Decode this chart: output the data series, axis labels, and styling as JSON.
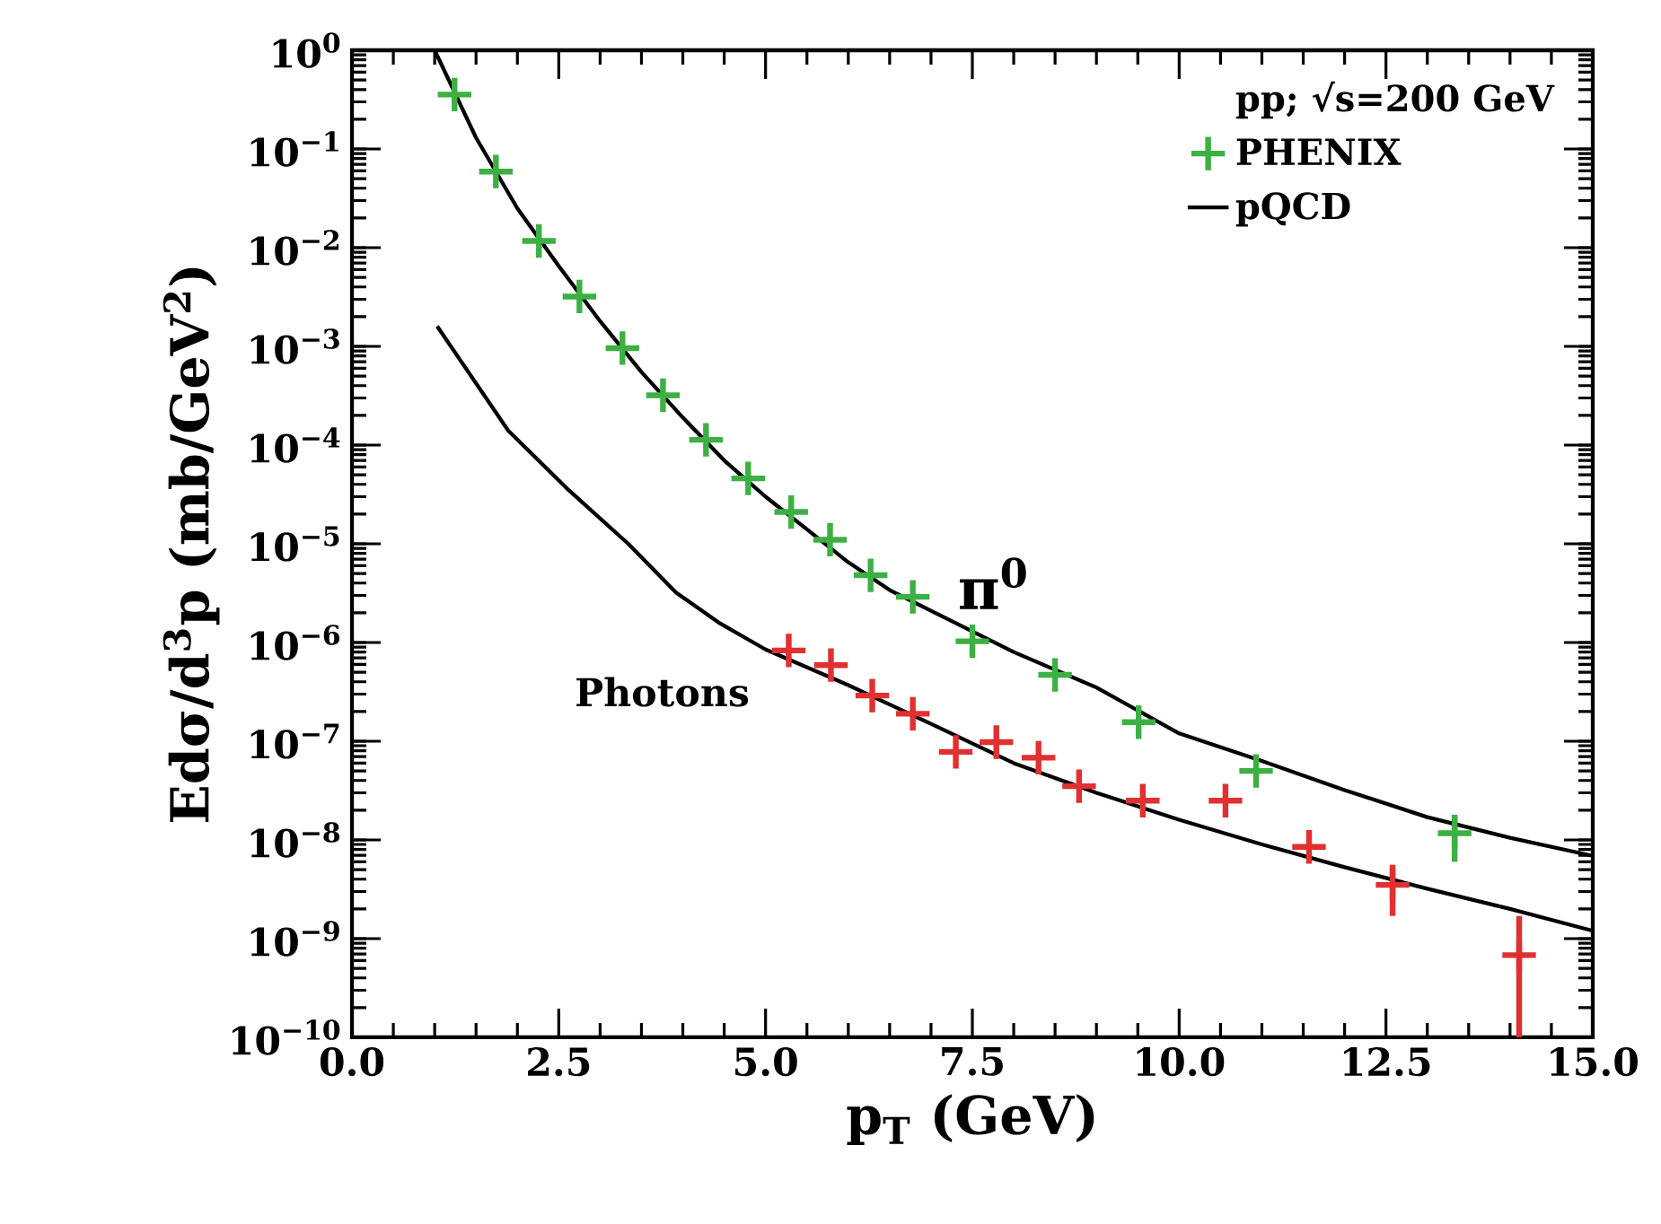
{
  "chart_data": {
    "type": "scatter",
    "xlabel": "p$_{T}$ (GeV)",
    "ylabel": "Edσ/d$^{3}$p (mb/GeV$^{2}$)",
    "legend_title": "pp; √s=200 GeV",
    "legend": "top right",
    "log": "y",
    "xlim": [
      0,
      15
    ],
    "ylim": [
      1e-10,
      1
    ],
    "xticks": [
      {
        "value": 0,
        "label": "0.0"
      },
      2.5,
      {
        "value": 5,
        "label": "5.0"
      },
      7.5,
      {
        "value": 10,
        "label": "10.0"
      },
      12.5,
      {
        "value": 15,
        "label": "15.0"
      }
    ],
    "yticks": [
      {
        "value": 1e-10,
        "label": "10$^{−10}$"
      },
      {
        "value": 1e-09,
        "label": "10$^{−9}$"
      },
      {
        "value": 1e-08,
        "label": "10$^{−8}$"
      },
      {
        "value": 1e-07,
        "label": "10$^{−7}$"
      },
      {
        "value": 1e-06,
        "label": "10$^{−6}$"
      },
      {
        "value": 1e-05,
        "label": "10$^{−5}$"
      },
      {
        "value": 0.0001,
        "label": "10$^{−4}$"
      },
      {
        "value": 0.001,
        "label": "10$^{−3}$"
      },
      {
        "value": 0.01,
        "label": "10$^{−2}$"
      },
      {
        "value": 0.1,
        "label": "10$^{−1}$"
      },
      {
        "value": 1,
        "label": "10$^{0}$"
      }
    ],
    "annotations": [
      "π$^{0}$",
      "Photons"
    ],
    "series": [
      {
        "name": "PHENIX",
        "marker": "cross",
        "color": "#3cb043",
        "x": [
          1.24,
          1.74,
          2.26,
          2.75,
          3.27,
          3.76,
          4.28,
          4.79,
          5.31,
          5.78,
          6.27,
          6.78,
          7.5,
          8.5,
          9.51,
          10.93,
          13.33
        ],
        "values": [
          0.356,
          0.059,
          0.0117,
          0.0032,
          0.00096,
          0.00032,
          0.000113,
          4.6e-05,
          2.1e-05,
          1.1e-05,
          4.8e-06,
          2.9e-06,
          1.03e-06,
          4.7e-07,
          1.56e-07,
          5e-08,
          1.17e-08
        ],
        "errors": [
          null,
          null,
          null,
          null,
          null,
          null,
          null,
          null,
          null,
          null,
          null,
          null,
          null,
          null,
          null,
          null,
          [
            6e-09,
            1.8e-08
          ]
        ]
      },
      {
        "marker": "cross",
        "color": "#e03030",
        "x": [
          5.28,
          5.79,
          6.29,
          6.78,
          7.3,
          7.79,
          8.3,
          8.79,
          9.56,
          10.56,
          11.57,
          12.58,
          14.11
        ],
        "values": [
          8.3e-07,
          5.9e-07,
          2.9e-07,
          1.9e-07,
          7.8e-08,
          9.8e-08,
          6.8e-08,
          3.5e-08,
          2.5e-08,
          2.5e-08,
          8.5e-09,
          3.5e-09,
          6.8e-10
        ],
        "errors": [
          null,
          null,
          null,
          null,
          null,
          null,
          null,
          null,
          null,
          null,
          null,
          [
            1.7e-09,
            5.6e-09
          ],
          [
            1e-10,
            1.7e-09
          ]
        ]
      },
      {
        "name": "pQCD",
        "type": "line",
        "color": "#000000",
        "x": [
          1.0,
          1.5,
          2,
          2.5,
          3,
          3.5,
          4,
          4.5,
          5,
          5.5,
          6,
          6.5,
          7,
          8,
          9,
          10,
          11,
          12,
          13,
          14,
          15
        ],
        "values": [
          1.0,
          0.13,
          0.025,
          0.0065,
          0.0018,
          0.00055,
          0.00019,
          7e-05,
          3e-05,
          1.4e-05,
          6.5e-06,
          3.4e-06,
          2.1e-06,
          8e-07,
          3.5e-07,
          1.2e-07,
          6.3e-08,
          3.2e-08,
          1.7e-08,
          1.05e-08,
          6.9e-09
        ]
      },
      {
        "type": "line",
        "color": "#000000",
        "x": [
          1.03,
          1.89,
          2.62,
          3.34,
          3.92,
          4.43,
          5,
          6,
          7,
          8,
          9,
          10,
          11,
          12,
          13,
          14,
          15
        ],
        "values": [
          0.0016,
          0.00014,
          3.5e-05,
          1e-05,
          3.2e-06,
          1.6e-06,
          8.5e-07,
          3.7e-07,
          1.5e-07,
          6e-08,
          3e-08,
          1.6e-08,
          9e-09,
          5.3e-09,
          3.2e-09,
          2e-09,
          1.2e-09
        ]
      }
    ]
  }
}
